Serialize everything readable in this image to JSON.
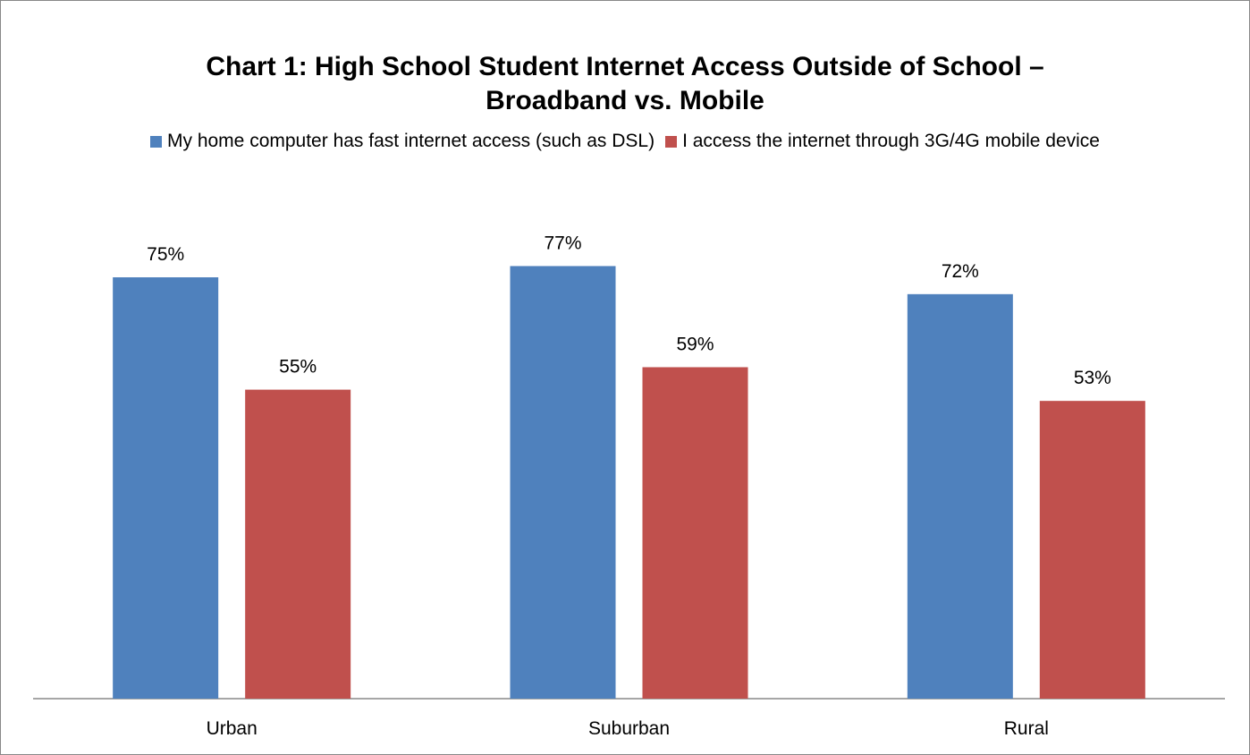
{
  "chart_data": {
    "type": "bar",
    "title_lines": [
      "Chart 1:  High School Student Internet Access Outside of School –",
      "Broadband vs. Mobile"
    ],
    "categories": [
      "Urban",
      "Suburban",
      "Rural"
    ],
    "series": [
      {
        "name": "My home computer has fast internet access (such as DSL)",
        "color": "#4F81BD",
        "values": [
          75,
          77,
          72
        ],
        "labels": [
          "75%",
          "77%",
          "72%"
        ]
      },
      {
        "name": "I access the internet through 3G/4G mobile device",
        "color": "#C0504D",
        "values": [
          55,
          59,
          53
        ],
        "labels": [
          "55%",
          "59%",
          "53%"
        ]
      }
    ],
    "value_format": "percent",
    "ylim": [
      0,
      100
    ],
    "grid": false,
    "legend_position": "top"
  }
}
